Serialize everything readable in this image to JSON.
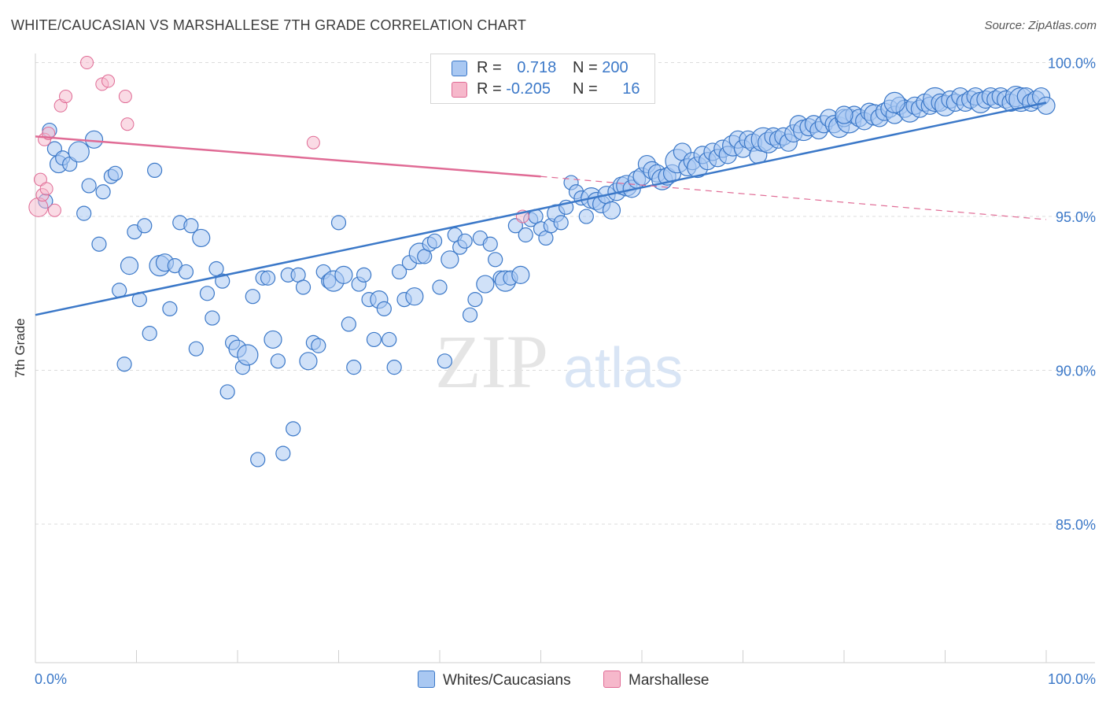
{
  "title": "WHITE/CAUCASIAN VS MARSHALLESE 7TH GRADE CORRELATION CHART",
  "source": "Source: ZipAtlas.com",
  "watermark": {
    "zip": "ZIP",
    "atlas": "atlas"
  },
  "colors": {
    "blue": "#3b78c8",
    "blue_fill": "#a9c8f2",
    "pink": "#e06b95",
    "pink_fill": "#f6b8cb",
    "grid": "#dcdcdc",
    "axis_label": "#3b78c8"
  },
  "legend": {
    "rows": [
      {
        "r_label": "R =",
        "r_value": "0.718",
        "n_label": "N =",
        "n_value": "200"
      },
      {
        "r_label": "R =",
        "r_value": "-0.205",
        "n_label": "N =",
        "n_value": "16"
      }
    ]
  },
  "chart_data": {
    "type": "scatter",
    "ylabel": "7th Grade",
    "xlim": [
      0,
      100
    ],
    "ylim": [
      80.5,
      100.5
    ],
    "y_ticks": [
      85,
      90,
      95,
      100
    ],
    "y_tick_labels": [
      "85.0%",
      "90.0%",
      "95.0%",
      "100.0%"
    ],
    "x_tick_labels": [
      "0.0%",
      "100.0%"
    ],
    "grid": true,
    "series": [
      {
        "name": "Whites/Caucasians",
        "color": "#3b78c8",
        "trend": {
          "x": [
            0,
            100
          ],
          "y": [
            91.8,
            98.7
          ]
        },
        "points": [
          [
            1.4,
            97.8
          ],
          [
            1.9,
            97.2
          ],
          [
            2.3,
            96.7
          ],
          [
            2.7,
            96.9
          ],
          [
            3.4,
            96.7
          ],
          [
            4.3,
            97.1
          ],
          [
            1.0,
            95.5
          ],
          [
            4.8,
            95.1
          ],
          [
            5.3,
            96.0
          ],
          [
            5.8,
            97.5
          ],
          [
            6.3,
            94.1
          ],
          [
            6.7,
            95.8
          ],
          [
            7.5,
            96.3
          ],
          [
            7.9,
            96.4
          ],
          [
            8.3,
            92.6
          ],
          [
            8.8,
            90.2
          ],
          [
            9.3,
            93.4
          ],
          [
            9.8,
            94.5
          ],
          [
            10.3,
            92.3
          ],
          [
            10.8,
            94.7
          ],
          [
            11.3,
            91.2
          ],
          [
            11.8,
            96.5
          ],
          [
            12.3,
            93.4
          ],
          [
            12.8,
            93.5
          ],
          [
            13.3,
            92.0
          ],
          [
            13.8,
            93.4
          ],
          [
            14.3,
            94.8
          ],
          [
            14.9,
            93.2
          ],
          [
            15.4,
            94.7
          ],
          [
            15.9,
            90.7
          ],
          [
            16.4,
            94.3
          ],
          [
            17.0,
            92.5
          ],
          [
            17.5,
            91.7
          ],
          [
            17.9,
            93.3
          ],
          [
            18.5,
            92.9
          ],
          [
            19.0,
            89.3
          ],
          [
            19.5,
            90.9
          ],
          [
            20.0,
            90.7
          ],
          [
            20.5,
            90.1
          ],
          [
            21.0,
            90.5
          ],
          [
            21.5,
            92.4
          ],
          [
            22.0,
            87.1
          ],
          [
            22.5,
            93.0
          ],
          [
            23.0,
            93.0
          ],
          [
            23.5,
            91.0
          ],
          [
            24.0,
            90.3
          ],
          [
            24.5,
            87.3
          ],
          [
            25.0,
            93.1
          ],
          [
            25.5,
            88.1
          ],
          [
            26.0,
            93.1
          ],
          [
            26.5,
            92.7
          ],
          [
            27.0,
            90.3
          ],
          [
            27.5,
            90.9
          ],
          [
            28.0,
            90.8
          ],
          [
            28.5,
            93.2
          ],
          [
            29.0,
            92.9
          ],
          [
            29.5,
            92.9
          ],
          [
            30.0,
            94.8
          ],
          [
            30.5,
            93.1
          ],
          [
            31.0,
            91.5
          ],
          [
            31.5,
            90.1
          ],
          [
            32.0,
            92.8
          ],
          [
            32.5,
            93.1
          ],
          [
            33.0,
            92.3
          ],
          [
            33.5,
            91.0
          ],
          [
            34.0,
            92.3
          ],
          [
            34.5,
            92.0
          ],
          [
            35.0,
            91.0
          ],
          [
            35.5,
            90.1
          ],
          [
            36.0,
            93.2
          ],
          [
            36.5,
            92.3
          ],
          [
            37.0,
            93.5
          ],
          [
            37.5,
            92.4
          ],
          [
            38.0,
            93.8
          ],
          [
            38.5,
            93.7
          ],
          [
            39.0,
            94.1
          ],
          [
            39.5,
            94.2
          ],
          [
            40.0,
            92.7
          ],
          [
            40.5,
            90.3
          ],
          [
            41.0,
            93.6
          ],
          [
            41.5,
            94.4
          ],
          [
            42.0,
            94.0
          ],
          [
            42.5,
            94.2
          ],
          [
            43.0,
            91.8
          ],
          [
            43.5,
            92.3
          ],
          [
            44.0,
            94.3
          ],
          [
            44.5,
            92.8
          ],
          [
            45.0,
            94.1
          ],
          [
            45.5,
            93.6
          ],
          [
            46.0,
            93.0
          ],
          [
            46.5,
            92.9
          ],
          [
            47.0,
            93.0
          ],
          [
            47.5,
            94.7
          ],
          [
            48.0,
            93.1
          ],
          [
            48.5,
            94.4
          ],
          [
            49.0,
            94.9
          ],
          [
            49.5,
            95.0
          ],
          [
            50.0,
            94.6
          ],
          [
            50.5,
            94.3
          ],
          [
            51.0,
            94.7
          ],
          [
            51.5,
            95.1
          ],
          [
            52.0,
            94.8
          ],
          [
            52.5,
            95.3
          ],
          [
            53.0,
            96.1
          ],
          [
            53.5,
            95.8
          ],
          [
            54.0,
            95.6
          ],
          [
            54.5,
            95.0
          ],
          [
            55.0,
            95.6
          ],
          [
            55.5,
            95.5
          ],
          [
            56.0,
            95.4
          ],
          [
            56.5,
            95.7
          ],
          [
            57.0,
            95.2
          ],
          [
            57.5,
            95.8
          ],
          [
            58.0,
            96.0
          ],
          [
            58.5,
            96.0
          ],
          [
            59.0,
            95.9
          ],
          [
            59.5,
            96.2
          ],
          [
            60.0,
            96.3
          ],
          [
            60.5,
            96.7
          ],
          [
            61.0,
            96.5
          ],
          [
            61.5,
            96.4
          ],
          [
            62.0,
            96.2
          ],
          [
            62.5,
            96.3
          ],
          [
            63.0,
            96.4
          ],
          [
            63.5,
            96.8
          ],
          [
            64.0,
            97.1
          ],
          [
            64.5,
            96.6
          ],
          [
            65.0,
            96.8
          ],
          [
            65.5,
            96.6
          ],
          [
            66.0,
            97.0
          ],
          [
            66.5,
            96.8
          ],
          [
            67.0,
            97.1
          ],
          [
            67.5,
            96.9
          ],
          [
            68.0,
            97.2
          ],
          [
            68.5,
            97.0
          ],
          [
            69.0,
            97.3
          ],
          [
            69.5,
            97.5
          ],
          [
            70.0,
            97.2
          ],
          [
            70.5,
            97.5
          ],
          [
            71.0,
            97.4
          ],
          [
            71.5,
            97.0
          ],
          [
            72.0,
            97.5
          ],
          [
            72.5,
            97.4
          ],
          [
            73.0,
            97.6
          ],
          [
            73.5,
            97.5
          ],
          [
            74.0,
            97.6
          ],
          [
            74.5,
            97.4
          ],
          [
            75.0,
            97.7
          ],
          [
            75.5,
            98.0
          ],
          [
            76.0,
            97.8
          ],
          [
            76.5,
            97.9
          ],
          [
            77.0,
            98.0
          ],
          [
            77.5,
            97.8
          ],
          [
            78.0,
            98.0
          ],
          [
            78.5,
            98.2
          ],
          [
            79.0,
            98.0
          ],
          [
            79.5,
            97.9
          ],
          [
            80.0,
            98.2
          ],
          [
            80.5,
            98.1
          ],
          [
            81.0,
            98.3
          ],
          [
            81.5,
            98.2
          ],
          [
            82.0,
            98.1
          ],
          [
            82.5,
            98.4
          ],
          [
            83.0,
            98.3
          ],
          [
            83.5,
            98.2
          ],
          [
            84.0,
            98.4
          ],
          [
            84.5,
            98.5
          ],
          [
            85.0,
            98.3
          ],
          [
            85.5,
            98.6
          ],
          [
            86.0,
            98.5
          ],
          [
            86.5,
            98.4
          ],
          [
            87.0,
            98.6
          ],
          [
            87.5,
            98.5
          ],
          [
            88.0,
            98.7
          ],
          [
            88.5,
            98.6
          ],
          [
            89.0,
            98.8
          ],
          [
            89.5,
            98.7
          ],
          [
            90.0,
            98.6
          ],
          [
            90.5,
            98.8
          ],
          [
            91.0,
            98.7
          ],
          [
            91.5,
            98.9
          ],
          [
            92.0,
            98.7
          ],
          [
            92.5,
            98.8
          ],
          [
            93.0,
            98.9
          ],
          [
            93.5,
            98.7
          ],
          [
            94.0,
            98.8
          ],
          [
            94.5,
            98.9
          ],
          [
            95.0,
            98.8
          ],
          [
            95.5,
            98.9
          ],
          [
            96.0,
            98.8
          ],
          [
            96.5,
            98.7
          ],
          [
            97.0,
            98.9
          ],
          [
            97.5,
            98.8
          ],
          [
            98.0,
            98.9
          ],
          [
            98.5,
            98.7
          ],
          [
            99.0,
            98.8
          ],
          [
            99.5,
            98.9
          ],
          [
            100.0,
            98.6
          ],
          [
            85.0,
            98.7
          ],
          [
            80.0,
            98.3
          ]
        ]
      },
      {
        "name": "Marshallese",
        "color": "#e06b95",
        "trend": {
          "x": [
            0,
            50,
            100
          ],
          "y": [
            97.6,
            96.3,
            94.9
          ]
        },
        "points": [
          [
            0.3,
            95.3
          ],
          [
            0.5,
            96.2
          ],
          [
            0.7,
            95.7
          ],
          [
            0.9,
            97.5
          ],
          [
            1.1,
            95.9
          ],
          [
            1.3,
            97.7
          ],
          [
            1.9,
            95.2
          ],
          [
            2.5,
            98.6
          ],
          [
            3.0,
            98.9
          ],
          [
            5.1,
            100.0
          ],
          [
            6.6,
            99.3
          ],
          [
            7.2,
            99.4
          ],
          [
            8.9,
            98.9
          ],
          [
            9.1,
            98.0
          ],
          [
            27.5,
            97.4
          ],
          [
            48.2,
            95.0
          ]
        ]
      }
    ]
  },
  "bottom_legend": [
    {
      "label": "Whites/Caucasians"
    },
    {
      "label": "Marshallese"
    }
  ]
}
